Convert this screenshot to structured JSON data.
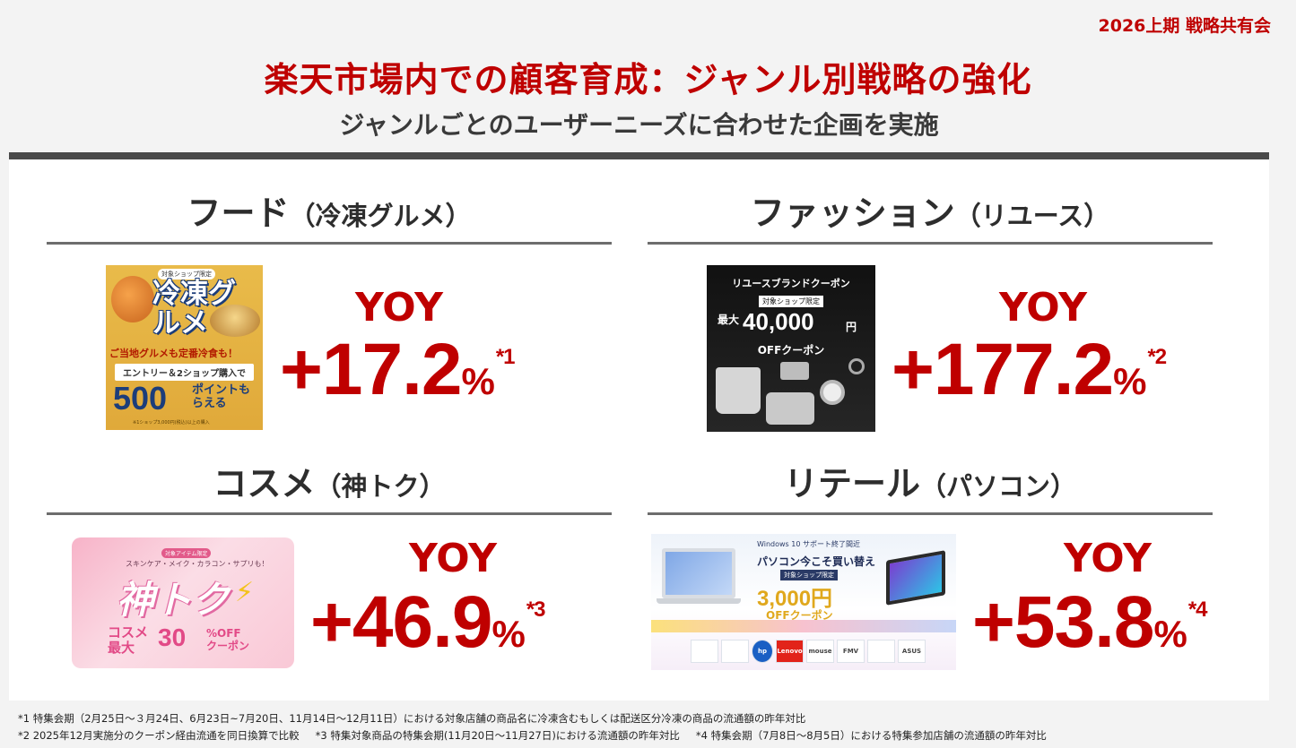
{
  "header": {
    "event": "2026上期 戦略共有会",
    "title": "楽天市場内での顧客育成：ジャンル別戦略の強化",
    "subtitle": "ジャンルごとのユーザーニーズに合わせた企画を実施"
  },
  "genres": {
    "food": {
      "title": "フード",
      "sub": "（冷凍グルメ）",
      "yoy_label": "YOY",
      "yoy_value": "+17.2",
      "unit": "%",
      "footnote_mark": "*1",
      "banner": {
        "tag": "対象ショップ限定",
        "headline": "冷凍グルメ",
        "catch": "ご当地グルメも定番冷食も！",
        "entry": "エントリー＆2ショップ購入で",
        "points": "500",
        "points_suffix": "ポイントもらえる",
        "note": "※1ショップ3,000円(税込)以上の購入"
      }
    },
    "fashion": {
      "title": "ファッション",
      "sub": "（リユース）",
      "yoy_label": "YOY",
      "yoy_value": "+177.2",
      "unit": "%",
      "footnote_mark": "*2",
      "banner": {
        "heading": "リユースブランドクーポン",
        "tag": "対象ショップ限定",
        "max": "最大",
        "amount": "40,000",
        "yen": "円",
        "coupon": "OFFクーポン"
      }
    },
    "cosme": {
      "title": "コスメ",
      "sub": "（神トク）",
      "yoy_label": "YOY",
      "yoy_value": "+46.9",
      "unit": "%",
      "footnote_mark": "*3",
      "banner": {
        "tag": "対象アイテム限定",
        "items": "スキンケア・メイク・カラコン・サプリも！",
        "headline": "神トク",
        "line1": "コスメ",
        "line2": "最大",
        "percent": "30",
        "off": "%OFF",
        "coupon": "クーポン"
      }
    },
    "retail": {
      "title": "リテール",
      "sub": "（パソコン）",
      "yoy_label": "YOY",
      "yoy_value": "+53.8",
      "unit": "%",
      "footnote_mark": "*4",
      "banner": {
        "top": "Windows 10 サポート終了間近",
        "headline": "パソコン今こそ買い替え",
        "tag": "対象ショップ限定",
        "amount": "3,000円",
        "coupon": "OFFクーポン",
        "brands": [
          "",
          "",
          "hp",
          "Lenovo",
          "mouse",
          "FMV",
          "",
          "ASUS"
        ]
      }
    }
  },
  "footnotes": {
    "n1": "*1 特集会期（2月25日～３月24日、6月23日~7月20日、11月14日～12月11日）における対象店舗の商品名に冷凍含むもしくは配送区分冷凍の商品の流通額の昨年対比",
    "n2": "*2 2025年12月実施分のクーポン経由流通を同日換算で比較",
    "n3": "*3 特集対象商品の特集会期(11月20日～11月27日)における流通額の昨年対比",
    "n4": "*4 特集会期（7月8日～8月5日）における特集参加店舗の流通額の昨年対比"
  },
  "colors": {
    "accent": "#bf0000",
    "heading": "#2d2d2d",
    "rule": "#6d6d6d",
    "panel_border": "#4a4a4a"
  }
}
